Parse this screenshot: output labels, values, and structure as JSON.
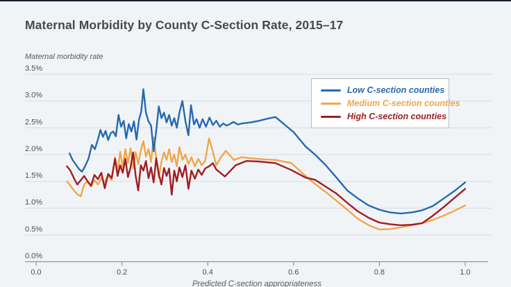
{
  "colors": {
    "background": "#f1f4f7",
    "top_bar": "#141f2b",
    "gridline": "#d8dce0",
    "axis": "#8f959c",
    "title_text": "#45494e",
    "tick_text": "#4a4e53"
  },
  "chart_data": {
    "type": "line",
    "title": "Maternal Morbidity by County C-Section Rate, 2015–17",
    "grid": "horizontal",
    "legend_position": "top-right",
    "x_axis": {
      "label": "Predicted C-section appropriateness",
      "range": [
        0,
        1.05
      ],
      "ticks": [
        {
          "label": "0.0",
          "value": 0.0
        },
        {
          "label": "0.2",
          "value": 0.2
        },
        {
          "label": "0.4",
          "value": 0.4
        },
        {
          "label": "0.6",
          "value": 0.6
        },
        {
          "label": "0.8",
          "value": 0.8
        },
        {
          "label": "1.0",
          "value": 1.0
        }
      ]
    },
    "y_axis": {
      "label": "Maternal morbidity rate",
      "unit": "%",
      "range": [
        0,
        3.5
      ],
      "ticks": [
        {
          "label": "3.5%",
          "value": 3.5
        },
        {
          "label": "3.0%",
          "value": 3.0
        },
        {
          "label": "2.5%",
          "value": 2.5
        },
        {
          "label": "2.0%",
          "value": 2.0
        },
        {
          "label": "1.5%",
          "value": 1.5
        },
        {
          "label": "1.0%",
          "value": 1.0
        },
        {
          "label": "0.5%",
          "value": 0.5
        },
        {
          "label": "0.0%",
          "value": 0.0
        }
      ]
    },
    "series": [
      {
        "id": "low",
        "name": "Low C-section counties",
        "color": "#2569b0",
        "points": [
          [
            0.078,
            2.02
          ],
          [
            0.085,
            1.9
          ],
          [
            0.092,
            1.82
          ],
          [
            0.1,
            1.73
          ],
          [
            0.107,
            1.68
          ],
          [
            0.114,
            1.78
          ],
          [
            0.122,
            1.92
          ],
          [
            0.13,
            2.18
          ],
          [
            0.137,
            2.1
          ],
          [
            0.144,
            2.28
          ],
          [
            0.15,
            2.46
          ],
          [
            0.156,
            2.33
          ],
          [
            0.162,
            2.44
          ],
          [
            0.168,
            2.27
          ],
          [
            0.174,
            2.4
          ],
          [
            0.18,
            2.43
          ],
          [
            0.186,
            2.34
          ],
          [
            0.192,
            2.74
          ],
          [
            0.198,
            2.52
          ],
          [
            0.204,
            2.63
          ],
          [
            0.21,
            2.3
          ],
          [
            0.216,
            2.57
          ],
          [
            0.222,
            2.43
          ],
          [
            0.228,
            2.62
          ],
          [
            0.234,
            2.28
          ],
          [
            0.24,
            2.66
          ],
          [
            0.245,
            2.8
          ],
          [
            0.25,
            3.22
          ],
          [
            0.256,
            2.78
          ],
          [
            0.262,
            2.62
          ],
          [
            0.268,
            2.54
          ],
          [
            0.274,
            2.06
          ],
          [
            0.28,
            2.44
          ],
          [
            0.286,
            2.9
          ],
          [
            0.292,
            2.68
          ],
          [
            0.298,
            2.78
          ],
          [
            0.304,
            2.6
          ],
          [
            0.31,
            2.74
          ],
          [
            0.316,
            2.54
          ],
          [
            0.322,
            2.68
          ],
          [
            0.328,
            2.5
          ],
          [
            0.334,
            2.78
          ],
          [
            0.341,
            3.0
          ],
          [
            0.348,
            2.62
          ],
          [
            0.355,
            2.36
          ],
          [
            0.361,
            2.92
          ],
          [
            0.368,
            2.56
          ],
          [
            0.374,
            2.66
          ],
          [
            0.381,
            2.5
          ],
          [
            0.388,
            2.66
          ],
          [
            0.396,
            2.52
          ],
          [
            0.404,
            2.69
          ],
          [
            0.412,
            2.55
          ],
          [
            0.42,
            2.63
          ],
          [
            0.428,
            2.52
          ],
          [
            0.436,
            2.58
          ],
          [
            0.444,
            2.54
          ],
          [
            0.452,
            2.57
          ],
          [
            0.46,
            2.61
          ],
          [
            0.47,
            2.56
          ],
          [
            0.48,
            2.58
          ],
          [
            0.5,
            2.6
          ],
          [
            0.52,
            2.63
          ],
          [
            0.54,
            2.67
          ],
          [
            0.558,
            2.7
          ],
          [
            0.6,
            2.42
          ],
          [
            0.628,
            2.15
          ],
          [
            0.65,
            2.0
          ],
          [
            0.675,
            1.8
          ],
          [
            0.7,
            1.57
          ],
          [
            0.725,
            1.33
          ],
          [
            0.75,
            1.18
          ],
          [
            0.775,
            1.05
          ],
          [
            0.8,
            0.97
          ],
          [
            0.825,
            0.92
          ],
          [
            0.85,
            0.9
          ],
          [
            0.875,
            0.92
          ],
          [
            0.9,
            0.96
          ],
          [
            0.925,
            1.04
          ],
          [
            0.95,
            1.18
          ],
          [
            0.975,
            1.32
          ],
          [
            1.0,
            1.48
          ]
        ]
      },
      {
        "id": "medium",
        "name": "Medium C-section counties",
        "color": "#f0a64a",
        "points": [
          [
            0.072,
            1.5
          ],
          [
            0.08,
            1.42
          ],
          [
            0.088,
            1.33
          ],
          [
            0.096,
            1.26
          ],
          [
            0.104,
            1.22
          ],
          [
            0.112,
            1.44
          ],
          [
            0.12,
            1.5
          ],
          [
            0.128,
            1.4
          ],
          [
            0.136,
            1.52
          ],
          [
            0.144,
            1.44
          ],
          [
            0.152,
            1.56
          ],
          [
            0.16,
            1.48
          ],
          [
            0.168,
            1.62
          ],
          [
            0.176,
            1.52
          ],
          [
            0.184,
            1.95
          ],
          [
            0.19,
            1.68
          ],
          [
            0.196,
            2.05
          ],
          [
            0.202,
            1.76
          ],
          [
            0.208,
            2.1
          ],
          [
            0.214,
            1.84
          ],
          [
            0.22,
            2.12
          ],
          [
            0.226,
            1.74
          ],
          [
            0.232,
            2.05
          ],
          [
            0.238,
            1.82
          ],
          [
            0.244,
            2.08
          ],
          [
            0.25,
            2.25
          ],
          [
            0.256,
            1.96
          ],
          [
            0.262,
            2.1
          ],
          [
            0.268,
            1.86
          ],
          [
            0.274,
            2.32
          ],
          [
            0.28,
            1.94
          ],
          [
            0.286,
            1.57
          ],
          [
            0.292,
            1.86
          ],
          [
            0.298,
            2.04
          ],
          [
            0.304,
            1.9
          ],
          [
            0.31,
            2.1
          ],
          [
            0.316,
            1.86
          ],
          [
            0.322,
            2.0
          ],
          [
            0.328,
            1.78
          ],
          [
            0.334,
            2.14
          ],
          [
            0.341,
            1.9
          ],
          [
            0.348,
            2.0
          ],
          [
            0.355,
            1.82
          ],
          [
            0.362,
            1.95
          ],
          [
            0.37,
            1.78
          ],
          [
            0.378,
            1.92
          ],
          [
            0.386,
            1.8
          ],
          [
            0.394,
            1.88
          ],
          [
            0.403,
            2.3
          ],
          [
            0.411,
            2.08
          ],
          [
            0.42,
            1.8
          ],
          [
            0.43,
            1.94
          ],
          [
            0.442,
            2.07
          ],
          [
            0.461,
            1.9
          ],
          [
            0.48,
            1.95
          ],
          [
            0.5,
            1.93
          ],
          [
            0.53,
            1.91
          ],
          [
            0.558,
            1.9
          ],
          [
            0.595,
            1.84
          ],
          [
            0.628,
            1.6
          ],
          [
            0.65,
            1.45
          ],
          [
            0.675,
            1.3
          ],
          [
            0.7,
            1.14
          ],
          [
            0.725,
            0.97
          ],
          [
            0.75,
            0.8
          ],
          [
            0.775,
            0.68
          ],
          [
            0.8,
            0.6
          ],
          [
            0.825,
            0.61
          ],
          [
            0.85,
            0.64
          ],
          [
            0.875,
            0.68
          ],
          [
            0.9,
            0.72
          ],
          [
            0.925,
            0.78
          ],
          [
            0.95,
            0.86
          ],
          [
            0.975,
            0.95
          ],
          [
            1.0,
            1.05
          ]
        ]
      },
      {
        "id": "high",
        "name": "High C-section counties",
        "color": "#a01d23",
        "points": [
          [
            0.072,
            1.78
          ],
          [
            0.08,
            1.7
          ],
          [
            0.088,
            1.56
          ],
          [
            0.096,
            1.44
          ],
          [
            0.104,
            1.52
          ],
          [
            0.112,
            1.6
          ],
          [
            0.12,
            1.5
          ],
          [
            0.128,
            1.42
          ],
          [
            0.136,
            1.62
          ],
          [
            0.144,
            1.54
          ],
          [
            0.152,
            1.66
          ],
          [
            0.16,
            1.37
          ],
          [
            0.168,
            1.64
          ],
          [
            0.176,
            1.56
          ],
          [
            0.184,
            1.92
          ],
          [
            0.19,
            1.6
          ],
          [
            0.196,
            1.8
          ],
          [
            0.202,
            1.66
          ],
          [
            0.208,
            1.92
          ],
          [
            0.214,
            1.58
          ],
          [
            0.22,
            1.76
          ],
          [
            0.226,
            2.04
          ],
          [
            0.232,
            1.6
          ],
          [
            0.238,
            1.33
          ],
          [
            0.244,
            1.8
          ],
          [
            0.25,
            1.7
          ],
          [
            0.256,
            1.88
          ],
          [
            0.262,
            1.56
          ],
          [
            0.268,
            1.76
          ],
          [
            0.274,
            1.48
          ],
          [
            0.28,
            1.93
          ],
          [
            0.286,
            1.64
          ],
          [
            0.292,
            1.44
          ],
          [
            0.298,
            1.75
          ],
          [
            0.304,
            1.6
          ],
          [
            0.31,
            1.74
          ],
          [
            0.316,
            1.25
          ],
          [
            0.322,
            1.7
          ],
          [
            0.328,
            1.5
          ],
          [
            0.334,
            1.76
          ],
          [
            0.341,
            1.58
          ],
          [
            0.348,
            1.8
          ],
          [
            0.355,
            1.36
          ],
          [
            0.362,
            1.7
          ],
          [
            0.37,
            1.55
          ],
          [
            0.378,
            1.72
          ],
          [
            0.386,
            1.62
          ],
          [
            0.394,
            1.74
          ],
          [
            0.403,
            1.78
          ],
          [
            0.412,
            1.84
          ],
          [
            0.42,
            1.72
          ],
          [
            0.44,
            1.59
          ],
          [
            0.465,
            1.8
          ],
          [
            0.49,
            1.88
          ],
          [
            0.52,
            1.87
          ],
          [
            0.558,
            1.84
          ],
          [
            0.595,
            1.71
          ],
          [
            0.628,
            1.57
          ],
          [
            0.65,
            1.53
          ],
          [
            0.675,
            1.4
          ],
          [
            0.7,
            1.27
          ],
          [
            0.725,
            1.1
          ],
          [
            0.75,
            0.94
          ],
          [
            0.775,
            0.82
          ],
          [
            0.8,
            0.73
          ],
          [
            0.825,
            0.7
          ],
          [
            0.85,
            0.68
          ],
          [
            0.875,
            0.69
          ],
          [
            0.9,
            0.72
          ],
          [
            0.925,
            0.86
          ],
          [
            0.95,
            1.02
          ],
          [
            0.975,
            1.19
          ],
          [
            1.0,
            1.36
          ]
        ]
      }
    ]
  }
}
